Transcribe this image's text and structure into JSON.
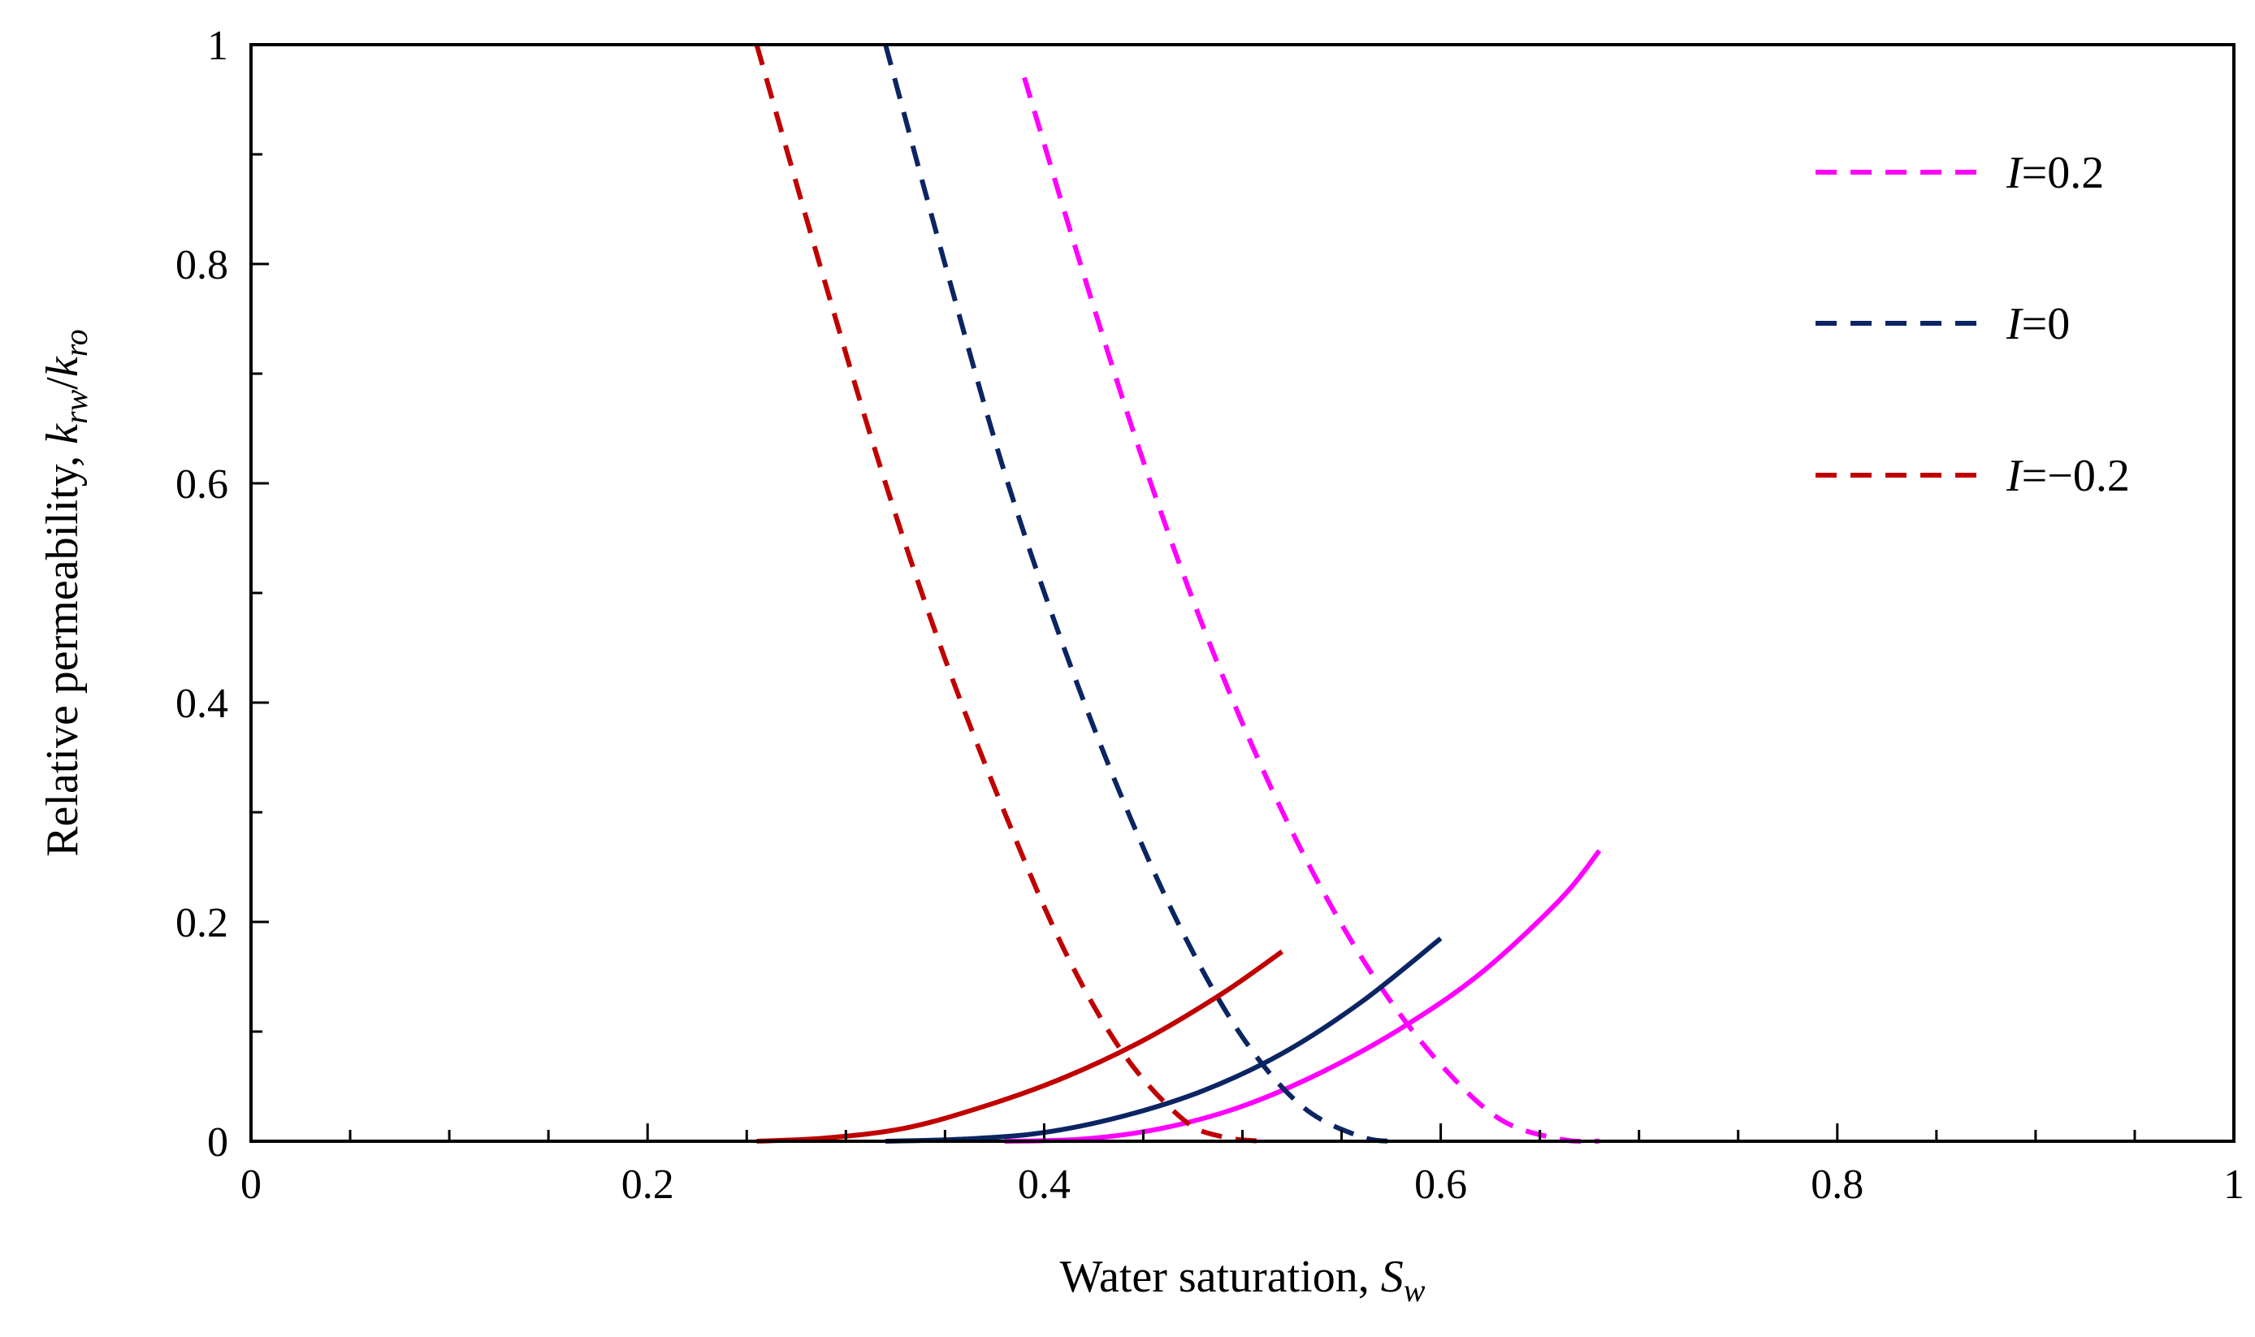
{
  "chart_data": {
    "type": "line",
    "xlabel": "Water saturation, ",
    "xlabel_var": "S",
    "xlabel_sub": "w",
    "ylabel": "Relative permeability, ",
    "ylabel_k1": "k",
    "ylabel_sub1": "rw",
    "ylabel_slash": "/",
    "ylabel_k2": "k",
    "ylabel_sub2": "ro",
    "xlim": [
      0,
      1
    ],
    "ylim": [
      0,
      1
    ],
    "x_ticks": [
      0,
      0.2,
      0.4,
      0.6,
      0.8,
      1
    ],
    "x_tick_labels": [
      "0",
      "0.2",
      "0.4",
      "0.6",
      "0.8",
      "1"
    ],
    "y_ticks": [
      0,
      0.2,
      0.4,
      0.6,
      0.8,
      1
    ],
    "y_tick_labels": [
      "0",
      "0.2",
      "0.4",
      "0.6",
      "0.8",
      "1"
    ],
    "grid": false,
    "legend_placement": "top-right",
    "series": [
      {
        "name": "I=0.2",
        "legend_var": "I",
        "legend_rest": "=0.2",
        "color": "#FF00FF",
        "kro": {
          "x": [
            0.39,
            0.42,
            0.45,
            0.48,
            0.51,
            0.54,
            0.57,
            0.6,
            0.63,
            0.66,
            0.68
          ],
          "y": [
            0.97,
            0.79,
            0.62,
            0.47,
            0.34,
            0.23,
            0.14,
            0.07,
            0.02,
            0.002,
            0.0
          ]
        },
        "krw": {
          "x": [
            0.38,
            0.42,
            0.46,
            0.5,
            0.54,
            0.58,
            0.62,
            0.66,
            0.68
          ],
          "y": [
            0.0,
            0.002,
            0.012,
            0.032,
            0.063,
            0.103,
            0.153,
            0.22,
            0.265
          ]
        }
      },
      {
        "name": "I=0",
        "legend_var": "I",
        "legend_rest": "=0",
        "color": "#0B2563",
        "kro": {
          "x": [
            0.32,
            0.35,
            0.38,
            0.41,
            0.44,
            0.47,
            0.5,
            0.53,
            0.56,
            0.58
          ],
          "y": [
            1.0,
            0.8,
            0.61,
            0.45,
            0.31,
            0.19,
            0.095,
            0.032,
            0.004,
            0.0
          ]
        },
        "krw": {
          "x": [
            0.32,
            0.36,
            0.4,
            0.44,
            0.48,
            0.52,
            0.56,
            0.6
          ],
          "y": [
            0.0,
            0.002,
            0.008,
            0.023,
            0.046,
            0.08,
            0.127,
            0.185
          ]
        }
      },
      {
        "name": "I=−0.2",
        "legend_var": "I",
        "legend_rest": "=−0.2",
        "color": "#C00000",
        "kro": {
          "x": [
            0.255,
            0.29,
            0.32,
            0.35,
            0.38,
            0.41,
            0.44,
            0.47,
            0.49,
            0.51
          ],
          "y": [
            1.0,
            0.78,
            0.6,
            0.44,
            0.3,
            0.175,
            0.08,
            0.02,
            0.004,
            0.0
          ]
        },
        "krw": {
          "x": [
            0.255,
            0.29,
            0.33,
            0.37,
            0.41,
            0.45,
            0.49,
            0.52
          ],
          "y": [
            0.0,
            0.003,
            0.012,
            0.032,
            0.058,
            0.092,
            0.135,
            0.173
          ]
        }
      }
    ]
  }
}
